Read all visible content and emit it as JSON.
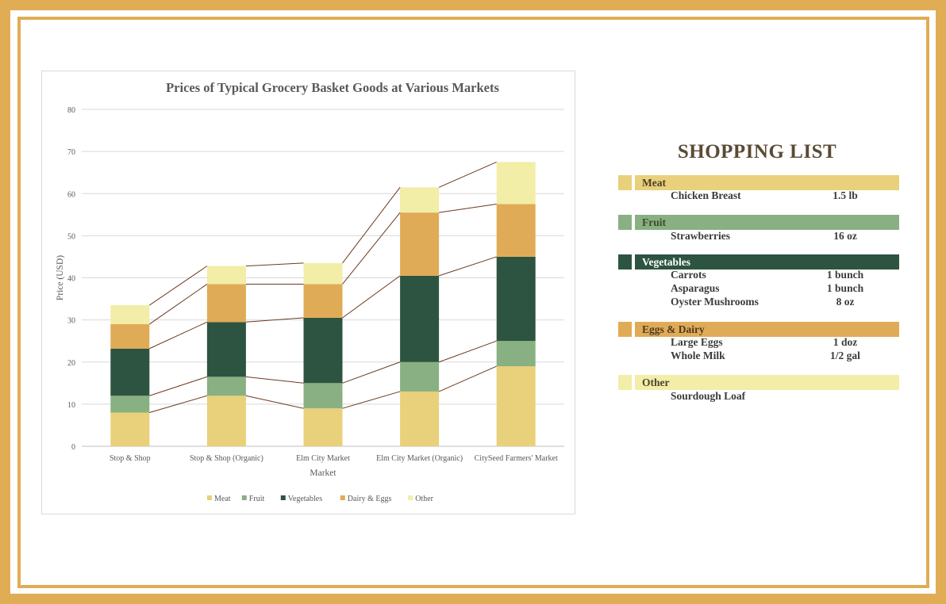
{
  "colors": {
    "frame": "#e0ad55",
    "meat": "#e9d07a",
    "fruit": "#88b082",
    "vegetables": "#2d5440",
    "dairy": "#e0ab56",
    "other": "#f2eda7",
    "connector": "#6b3a20"
  },
  "chart_data": {
    "type": "bar",
    "stacked": true,
    "title": "Prices of Typical Grocery Basket Goods at Various Markets",
    "xlabel": "Market",
    "ylabel": "Price (USD)",
    "ylim": [
      0,
      80
    ],
    "yticks": [
      "0",
      "10",
      "20",
      "30",
      "40",
      "50",
      "60",
      "70",
      "80"
    ],
    "grid": true,
    "legend_position": "bottom",
    "categories": [
      "Stop & Shop",
      "Stop & Shop (Organic)",
      "Elm City Market",
      "Elm City Market (Organic)",
      "CitySeed Farmers' Market"
    ],
    "series": [
      {
        "name": "Meat",
        "color": "#e9d07a",
        "values": [
          8,
          12,
          9,
          13,
          19
        ]
      },
      {
        "name": "Fruit",
        "color": "#88b082",
        "values": [
          4,
          4.5,
          6,
          7,
          6
        ]
      },
      {
        "name": "Vegetables",
        "color": "#2d5440",
        "values": [
          11.2,
          13,
          15.5,
          20.5,
          20
        ]
      },
      {
        "name": "Dairy & Eggs",
        "color": "#e0ab56",
        "values": [
          5.8,
          9,
          8,
          15,
          12.5
        ]
      },
      {
        "name": "Other",
        "color": "#f2eda7",
        "values": [
          4.5,
          4.3,
          5,
          6,
          10
        ]
      }
    ]
  },
  "shopping_list": {
    "title": "SHOPPING LIST",
    "categories": [
      {
        "name": "Meat",
        "items": [
          {
            "name": "Chicken Breast",
            "qty": "1.5 lb"
          }
        ]
      },
      {
        "name": "Fruit",
        "items": [
          {
            "name": "Strawberries",
            "qty": "16 oz"
          }
        ]
      },
      {
        "name": "Vegetables",
        "items": [
          {
            "name": "Carrots",
            "qty": "1 bunch"
          },
          {
            "name": "Asparagus",
            "qty": "1 bunch"
          },
          {
            "name": "Oyster Mushrooms",
            "qty": "8 oz"
          }
        ]
      },
      {
        "name": "Eggs & Dairy",
        "items": [
          {
            "name": "Large Eggs",
            "qty": "1 doz"
          },
          {
            "name": "Whole Milk",
            "qty": "1/2 gal"
          }
        ]
      },
      {
        "name": "Other",
        "items": [
          {
            "name": "Sourdough Loaf",
            "qty": ""
          }
        ]
      }
    ]
  }
}
